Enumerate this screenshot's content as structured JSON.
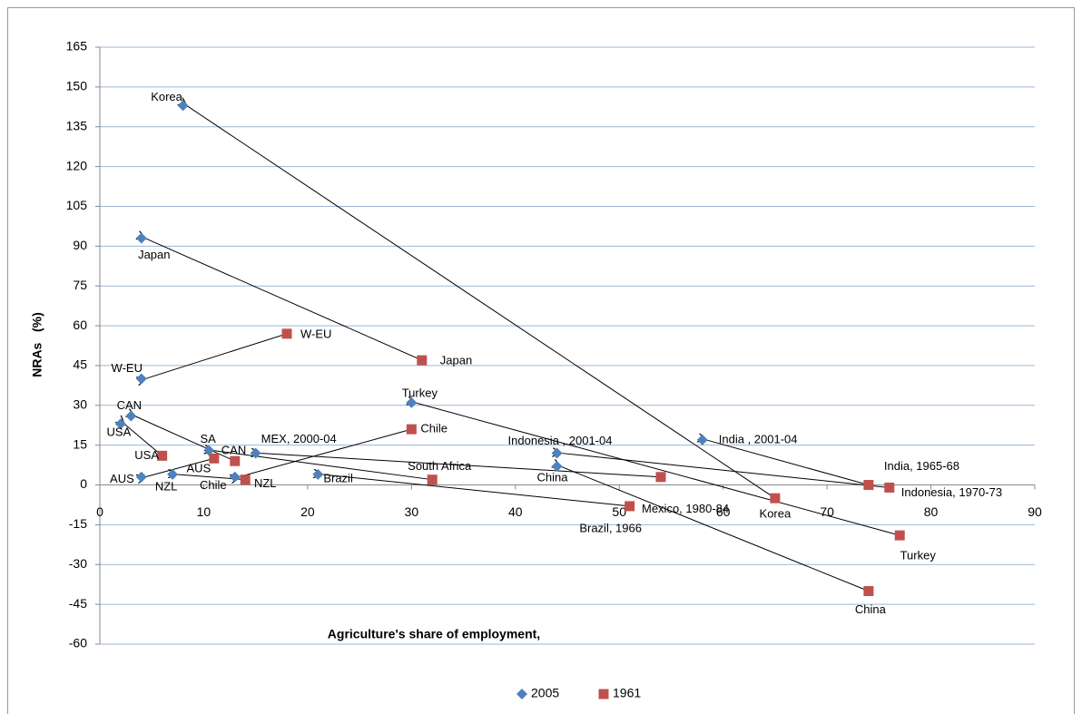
{
  "chart_data": {
    "type": "scatter",
    "x_label": "Agriculture's share of employment,",
    "y_label": "NRAs   (%)",
    "xlim": [
      0,
      90
    ],
    "xticks": [
      0,
      10,
      20,
      30,
      40,
      50,
      60,
      70,
      80,
      90
    ],
    "ylim": [
      -60,
      165
    ],
    "yticks": [
      -60,
      -45,
      -30,
      -15,
      0,
      15,
      30,
      45,
      60,
      75,
      90,
      105,
      120,
      135,
      150,
      165
    ],
    "grid": true,
    "arrows": true,
    "legend": "bottom",
    "series": [
      {
        "name": "2005",
        "color": "#4f81bd",
        "marker": "diamond",
        "x": [
          8,
          4,
          4,
          3,
          2,
          4,
          7,
          13,
          10.5,
          15,
          21,
          30,
          44,
          44,
          58
        ],
        "values": [
          143,
          93,
          40,
          26,
          23,
          3,
          4,
          3,
          13,
          12,
          4,
          31,
          12,
          7,
          17
        ],
        "labels": [
          "Korea",
          "Japan",
          "W-EU",
          "CAN",
          "USA",
          "AUS",
          "NZL",
          "Chile",
          "SA",
          "MEX, 2000-04",
          "Brazil",
          "Turkey",
          "Indonesia , 2001-04",
          "China",
          "India , 2001-04"
        ]
      },
      {
        "name": "1961",
        "color": "#c0504d",
        "marker": "square",
        "x": [
          65,
          31,
          18,
          13,
          6,
          11,
          14,
          30,
          32,
          54,
          51,
          77,
          76,
          74,
          74
        ],
        "values": [
          -5,
          47,
          57,
          9,
          11,
          10,
          2,
          21,
          2,
          3,
          -8,
          -19,
          -1,
          -40,
          0
        ],
        "labels": [
          "Korea",
          "Japan",
          "W-EU",
          "CAN",
          "USA",
          "AUS",
          "NZL",
          "Chile",
          "South Africa",
          "Mexico, 1980-84",
          "Brazil, 1966",
          "Turkey",
          "Indonesia, 1970-73",
          "China",
          "India, 1965-68"
        ]
      }
    ]
  }
}
